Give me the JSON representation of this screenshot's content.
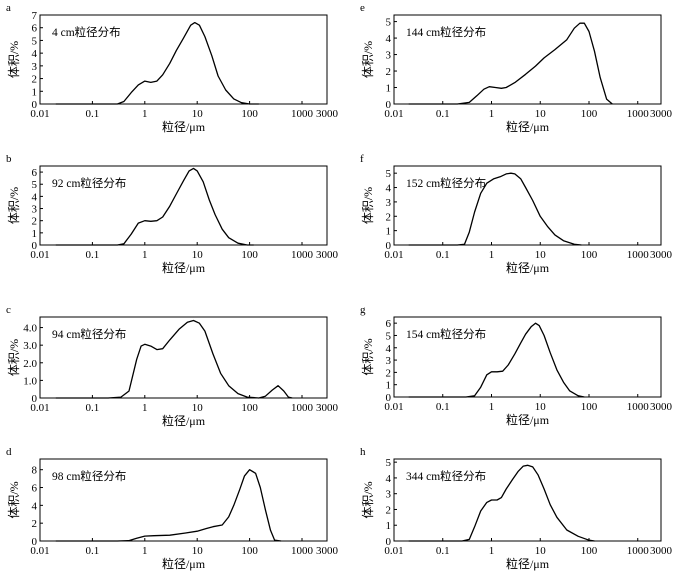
{
  "chart_data": [
    {
      "panel": "a",
      "type": "line",
      "x_scale": "log",
      "title": "4 cm粒径分布",
      "xlabel": "粒径/μm",
      "ylabel": "体积/%",
      "xlim": [
        0.01,
        3000
      ],
      "ylim": [
        0,
        7
      ],
      "xticks": [
        "0.01",
        "0.1",
        "1",
        "10",
        "100",
        "1000",
        "3000"
      ],
      "yticks": [
        "0",
        "1",
        "2",
        "3",
        "4",
        "5",
        "6",
        "7"
      ],
      "series": [
        {
          "x": [
            0.02,
            0.1,
            0.3,
            0.4,
            0.55,
            0.75,
            1,
            1.3,
            1.7,
            2.2,
            3,
            4,
            5.5,
            7.5,
            9,
            11,
            14,
            19,
            25,
            35,
            50,
            70,
            100,
            150
          ],
          "values": [
            0,
            0,
            0,
            0.2,
            0.9,
            1.5,
            1.8,
            1.7,
            1.8,
            2.3,
            3.2,
            4.2,
            5.2,
            6.2,
            6.4,
            6.2,
            5.3,
            3.8,
            2.2,
            1.1,
            0.4,
            0.1,
            0,
            0
          ]
        }
      ]
    },
    {
      "panel": "b",
      "type": "line",
      "x_scale": "log",
      "title": "92 cm粒径分布",
      "xlabel": "粒径/μm",
      "ylabel": "体积/%",
      "xlim": [
        0.01,
        3000
      ],
      "ylim": [
        0,
        6.5
      ],
      "xticks": [
        "0.01",
        "0.1",
        "1",
        "10",
        "100",
        "1000",
        "3000"
      ],
      "yticks": [
        "0",
        "1",
        "2",
        "3",
        "4",
        "5",
        "6"
      ],
      "series": [
        {
          "x": [
            0.02,
            0.1,
            0.3,
            0.4,
            0.55,
            0.75,
            1,
            1.3,
            1.7,
            2.2,
            3,
            4,
            5.5,
            7,
            8.5,
            10,
            13,
            17,
            22,
            30,
            40,
            60,
            90,
            120
          ],
          "values": [
            0,
            0,
            0,
            0.1,
            0.9,
            1.8,
            2,
            1.95,
            2,
            2.3,
            3.2,
            4.2,
            5.3,
            6.1,
            6.3,
            6.1,
            5.2,
            3.7,
            2.5,
            1.3,
            0.6,
            0.15,
            0,
            0
          ]
        }
      ]
    },
    {
      "panel": "c",
      "type": "line",
      "x_scale": "log",
      "title": "94 cm粒径分布",
      "xlabel": "粒径/μm",
      "ylabel": "体积/%",
      "xlim": [
        0.01,
        3000
      ],
      "ylim": [
        0,
        4.6
      ],
      "xticks": [
        "0.01",
        "0.1",
        "1",
        "10",
        "100",
        "1000",
        "3000"
      ],
      "yticks": [
        "0",
        "1.0",
        "2.0",
        "3.0",
        "4.0"
      ],
      "series": [
        {
          "x": [
            0.02,
            0.2,
            0.35,
            0.5,
            0.7,
            0.85,
            1,
            1.3,
            1.7,
            2.2,
            3,
            4.5,
            6.5,
            8.5,
            11,
            14,
            20,
            28,
            40,
            60,
            90,
            150,
            200,
            270,
            350,
            450,
            550,
            650
          ],
          "values": [
            0,
            0,
            0.05,
            0.4,
            2.2,
            2.95,
            3.05,
            2.95,
            2.75,
            2.8,
            3.3,
            3.9,
            4.3,
            4.4,
            4.25,
            3.8,
            2.5,
            1.4,
            0.7,
            0.25,
            0.05,
            0,
            0.1,
            0.45,
            0.7,
            0.4,
            0.05,
            0
          ]
        }
      ]
    },
    {
      "panel": "d",
      "type": "line",
      "x_scale": "log",
      "title": "98 cm粒径分布",
      "xlabel": "粒径/μm",
      "ylabel": "体积/%",
      "xlim": [
        0.01,
        3000
      ],
      "ylim": [
        0,
        9.2
      ],
      "xticks": [
        "0.01",
        "0.1",
        "1",
        "10",
        "100",
        "1000",
        "3000"
      ],
      "yticks": [
        "0",
        "2",
        "4",
        "6",
        "8"
      ],
      "series": [
        {
          "x": [
            0.02,
            0.3,
            0.5,
            0.7,
            1,
            1.5,
            3,
            6,
            10,
            15,
            20,
            30,
            40,
            50,
            65,
            80,
            100,
            130,
            160,
            200,
            250,
            300,
            400
          ],
          "values": [
            0,
            0,
            0.05,
            0.3,
            0.55,
            0.6,
            0.65,
            0.9,
            1.1,
            1.4,
            1.6,
            1.8,
            2.7,
            4,
            5.8,
            7.3,
            8,
            7.6,
            6,
            3.5,
            1.2,
            0.1,
            0
          ]
        }
      ]
    },
    {
      "panel": "e",
      "type": "line",
      "x_scale": "log",
      "title": "144 cm粒径分布",
      "xlabel": "粒径/μm",
      "ylabel": "体积/%",
      "xlim": [
        0.01,
        3000
      ],
      "ylim": [
        0,
        5.4
      ],
      "xticks": [
        "0.01",
        "0.1",
        "1",
        "10",
        "100",
        "1000",
        "3000"
      ],
      "yticks": [
        "0",
        "1",
        "2",
        "3",
        "4",
        "5"
      ],
      "series": [
        {
          "x": [
            0.02,
            0.2,
            0.35,
            0.5,
            0.7,
            0.9,
            1.2,
            1.6,
            2,
            3,
            5,
            8,
            12,
            20,
            35,
            50,
            65,
            80,
            100,
            130,
            170,
            230,
            300
          ],
          "values": [
            0,
            0,
            0.1,
            0.5,
            0.9,
            1.05,
            1.0,
            0.95,
            1.0,
            1.3,
            1.8,
            2.3,
            2.8,
            3.3,
            3.9,
            4.6,
            4.9,
            4.9,
            4.4,
            3.2,
            1.6,
            0.3,
            0
          ]
        }
      ]
    },
    {
      "panel": "f",
      "type": "line",
      "x_scale": "log",
      "title": "152 cm粒径分布",
      "xlabel": "粒径/μm",
      "ylabel": "体积/%",
      "xlim": [
        0.01,
        3000
      ],
      "ylim": [
        0,
        5.5
      ],
      "xticks": [
        "0.01",
        "0.1",
        "1",
        "10",
        "100",
        "1000",
        "3000"
      ],
      "yticks": [
        "0",
        "1",
        "2",
        "3",
        "4",
        "5"
      ],
      "series": [
        {
          "x": [
            0.02,
            0.2,
            0.28,
            0.35,
            0.45,
            0.6,
            0.8,
            1.1,
            1.5,
            2,
            2.5,
            3,
            4,
            5,
            7,
            10,
            14,
            20,
            30,
            50,
            70
          ],
          "values": [
            0,
            0,
            0.05,
            0.9,
            2.3,
            3.6,
            4.3,
            4.6,
            4.75,
            4.95,
            5.0,
            4.95,
            4.6,
            4.0,
            3.1,
            2.0,
            1.3,
            0.7,
            0.3,
            0.05,
            0
          ]
        }
      ]
    },
    {
      "panel": "g",
      "type": "line",
      "x_scale": "log",
      "title": "154 cm粒径分布",
      "xlabel": "粒径/μm",
      "ylabel": "体积/%",
      "xlim": [
        0.01,
        3000
      ],
      "ylim": [
        0,
        6.5
      ],
      "xticks": [
        "0.01",
        "0.1",
        "1",
        "10",
        "100",
        "1000",
        "3000"
      ],
      "yticks": [
        "0",
        "1",
        "2",
        "3",
        "4",
        "5",
        "6"
      ],
      "series": [
        {
          "x": [
            0.02,
            0.3,
            0.45,
            0.6,
            0.8,
            1,
            1.3,
            1.7,
            2.2,
            3,
            4,
            5,
            6.5,
            8,
            9.5,
            12,
            16,
            22,
            30,
            40,
            60,
            80
          ],
          "values": [
            0,
            0,
            0.1,
            0.8,
            1.8,
            2.05,
            2.05,
            2.1,
            2.6,
            3.5,
            4.4,
            5.1,
            5.7,
            6.0,
            5.8,
            5.0,
            3.6,
            2.2,
            1.2,
            0.5,
            0.1,
            0
          ]
        }
      ]
    },
    {
      "panel": "h",
      "type": "line",
      "x_scale": "log",
      "title": "344 cm粒径分布",
      "xlabel": "粒径/μm",
      "ylabel": "体积/%",
      "xlim": [
        0.01,
        3000
      ],
      "ylim": [
        0,
        5.2
      ],
      "xticks": [
        "0.01",
        "0.1",
        "1",
        "10",
        "100",
        "1000",
        "3000"
      ],
      "yticks": [
        "0",
        "1",
        "2",
        "3",
        "4",
        "5"
      ],
      "series": [
        {
          "x": [
            0.02,
            0.25,
            0.35,
            0.45,
            0.6,
            0.8,
            1,
            1.3,
            1.6,
            2,
            2.7,
            3.5,
            4.5,
            5.5,
            7,
            9,
            12,
            16,
            22,
            35,
            60,
            100,
            130
          ],
          "values": [
            0,
            0,
            0.1,
            0.9,
            1.9,
            2.45,
            2.6,
            2.6,
            2.75,
            3.3,
            3.9,
            4.4,
            4.75,
            4.8,
            4.7,
            4.2,
            3.3,
            2.3,
            1.5,
            0.7,
            0.3,
            0.05,
            0
          ]
        }
      ]
    }
  ]
}
